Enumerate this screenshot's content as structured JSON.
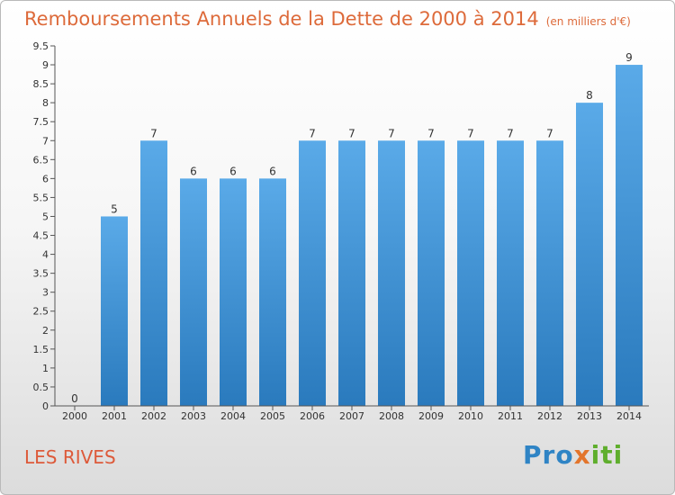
{
  "header": {
    "title": "Remboursements Annuels de la Dette de 2000 à 2014",
    "unit": "(en milliers d'€)"
  },
  "footer": {
    "commune": "LES RIVES",
    "logo": "Proxiti"
  },
  "colors": {
    "bar_top": "#5aaae8",
    "bar_bottom": "#2a7abd",
    "title": "#dd6a3a"
  },
  "chart_data": {
    "type": "bar",
    "title": "Remboursements Annuels de la Dette de 2000 à 2014",
    "xlabel": "",
    "ylabel": "",
    "categories": [
      "2000",
      "2001",
      "2002",
      "2003",
      "2004",
      "2005",
      "2006",
      "2007",
      "2008",
      "2009",
      "2010",
      "2011",
      "2012",
      "2013",
      "2014"
    ],
    "values": [
      0,
      5,
      7,
      6,
      6,
      6,
      7,
      7,
      7,
      7,
      7,
      7,
      7,
      8,
      9
    ],
    "data_labels": [
      "0",
      "5",
      "7",
      "6",
      "6",
      "6",
      "7",
      "7",
      "7",
      "7",
      "7",
      "7",
      "7",
      "8",
      "9"
    ],
    "ylim": [
      0,
      9.5
    ],
    "yticks": [
      "0",
      "0.5",
      "1",
      "1.5",
      "2",
      "2.5",
      "3",
      "3.5",
      "4",
      "4.5",
      "5",
      "5.5",
      "6",
      "6.5",
      "7",
      "7.5",
      "8",
      "8.5",
      "9",
      "9.5"
    ],
    "grid": false,
    "legend": "none"
  }
}
